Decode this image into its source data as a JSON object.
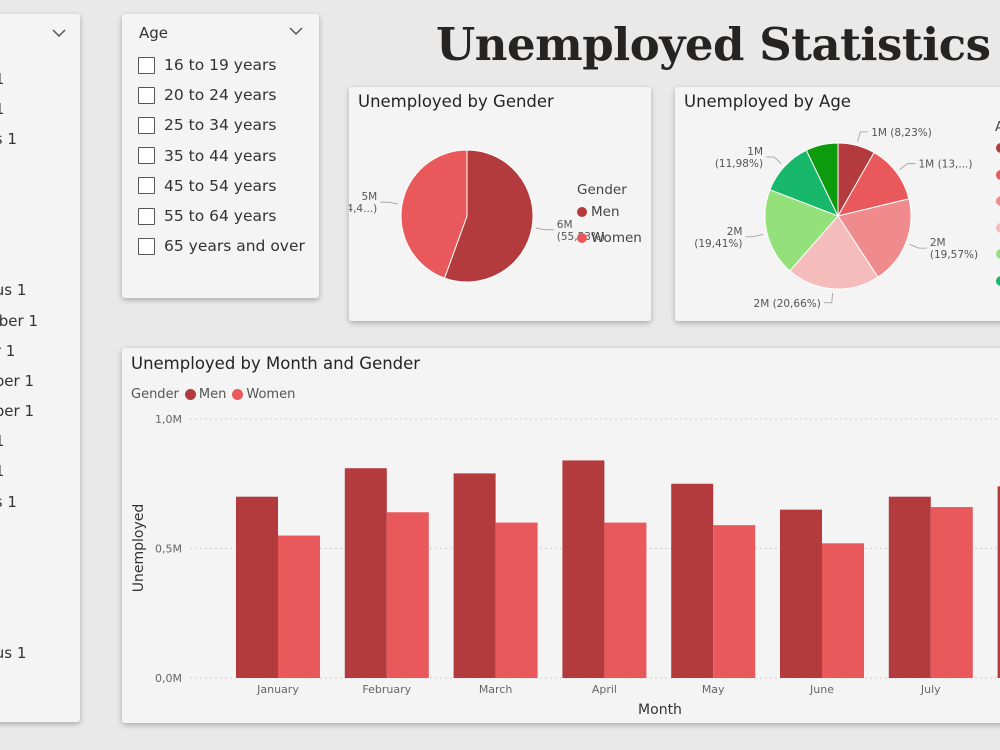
{
  "page": {
    "title": "Unemployed Statistics"
  },
  "month_slicer": {
    "items": [
      "1.",
      "1.",
      "s 1.",
      ".",
      ".",
      ".",
      ".",
      "us 1.",
      "mber 1.",
      "r 1.",
      "ber 1.",
      "ber 1.",
      "1.",
      "1.",
      "s 1.",
      ".",
      ".",
      ".",
      ".",
      "us 1."
    ]
  },
  "age_slicer": {
    "title": "Age",
    "options": [
      "16 to 19 years",
      "20 to 24 years",
      "25 to 34 years",
      "35 to 44 years",
      "45 to 54 years",
      "55 to 64 years",
      "65 years and over"
    ]
  },
  "gender_pie": {
    "title": "Unemployed by Gender",
    "legend_title": "Gender",
    "colors": {
      "Men": "#b33b3d",
      "Women": "#e9585b"
    },
    "chart_data": {
      "type": "pie",
      "labels": [
        "Men",
        "Women"
      ],
      "values": [
        55.53,
        44.47
      ],
      "data_labels": [
        [
          "6M",
          "(55,53%)"
        ],
        [
          "5M",
          "(44,4...)"
        ]
      ]
    }
  },
  "age_pie": {
    "title": "Unemployed by Age",
    "legend_title_partial": "A",
    "legend_colors": [
      "#b33b3d",
      "#e9585b",
      "#ef8b8c",
      "#f5bcbc",
      "#94e07a",
      "#18b86a"
    ],
    "chart_data": {
      "type": "pie",
      "values": [
        8.23,
        13.0,
        19.57,
        20.66,
        19.41,
        11.98,
        7.15
      ],
      "colors": [
        "#b33b3d",
        "#e9585b",
        "#ef8b8c",
        "#f5bcbc",
        "#94e07a",
        "#18b86a",
        "#0c9b0c"
      ],
      "data_labels": [
        [
          "1M (8,23%)"
        ],
        [
          "1M (13,...)"
        ],
        [
          "2M",
          "(19,57%)"
        ],
        [
          "2M (20,66%)"
        ],
        [
          "2M",
          "(19,41%)"
        ],
        [
          "1M",
          "(11,98%)"
        ],
        []
      ]
    }
  },
  "bar_chart": {
    "title": "Unemployed by Month and Gender",
    "legend_title": "Gender",
    "chart_data": {
      "type": "bar",
      "categories": [
        "January",
        "February",
        "March",
        "April",
        "May",
        "June",
        "July"
      ],
      "series": [
        {
          "name": "Men",
          "color": "#b33b3d",
          "values": [
            0.7,
            0.81,
            0.79,
            0.84,
            0.75,
            0.65,
            0.7
          ]
        },
        {
          "name": "Women",
          "color": "#e9585b",
          "values": [
            0.55,
            0.64,
            0.6,
            0.6,
            0.59,
            0.52,
            0.66
          ]
        }
      ],
      "partial_next_men_value": 0.74,
      "xlabel": "Month",
      "ylabel": "Unemployed",
      "ylim": [
        0,
        1.0
      ],
      "yticks": [
        [
          "0,0M",
          0
        ],
        [
          "0,5M",
          0.5
        ],
        [
          "1,0M",
          1.0
        ]
      ]
    }
  }
}
